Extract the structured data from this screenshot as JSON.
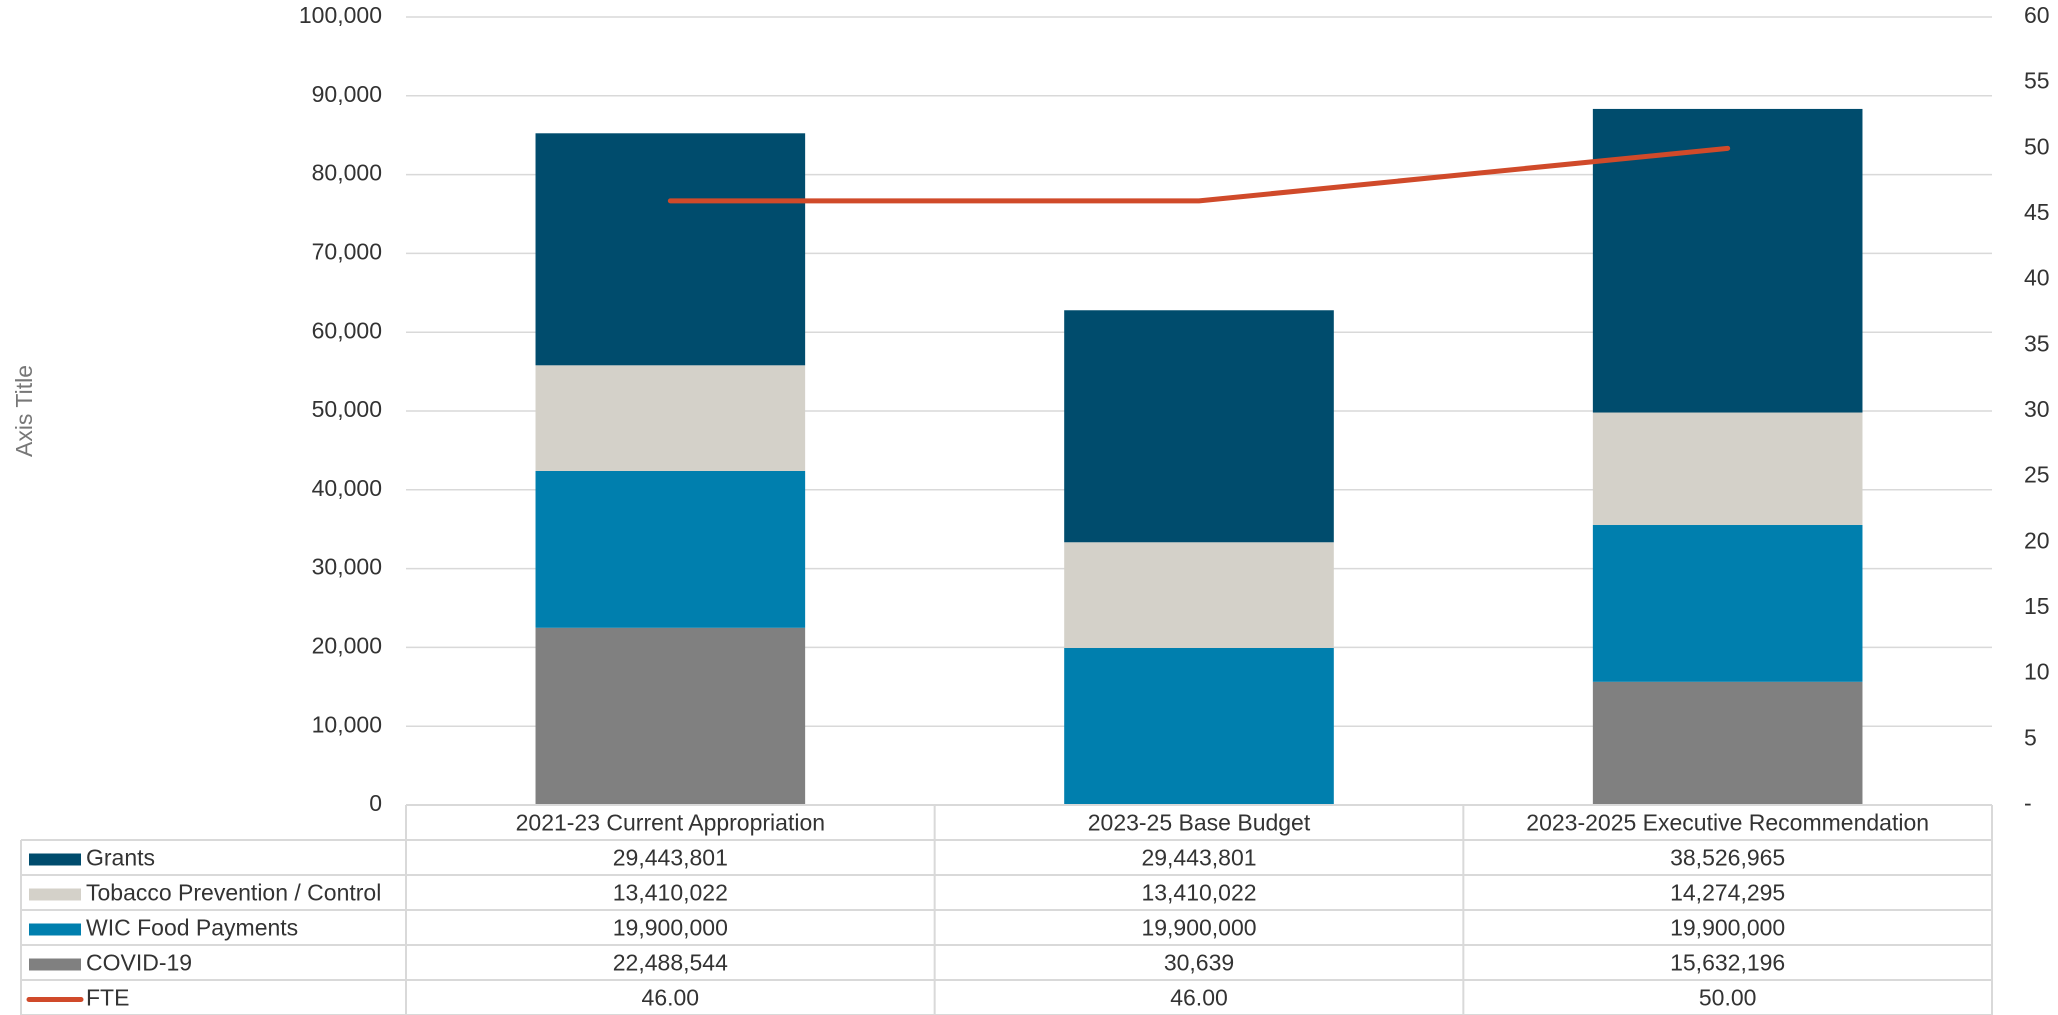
{
  "chart_data": {
    "type": "bar",
    "stacked": true,
    "y_label": "Axis Title",
    "categories": [
      "2021-23 Current Appropriation",
      "2023-25 Base Budget",
      "2023-2025 Executive Recommendation"
    ],
    "series": [
      {
        "name": "Grants",
        "color": "#004c6d",
        "values": [
          29443.801,
          29443.801,
          38526.965
        ],
        "value_labels": [
          "29,443,801",
          "29,443,801",
          "38,526,965"
        ]
      },
      {
        "name": "Tobacco Prevention / Control",
        "color": "#d4d1c9",
        "values": [
          13410.022,
          13410.022,
          14274.295
        ],
        "value_labels": [
          "13,410,022",
          "13,410,022",
          "14,274,295"
        ]
      },
      {
        "name": "WIC Food Payments",
        "color": "#007fae",
        "values": [
          19900,
          19900,
          19900
        ],
        "value_labels": [
          "19,900,000",
          "19,900,000",
          "19,900,000"
        ]
      },
      {
        "name": "COVID-19",
        "color": "#808080",
        "values": [
          22488.544,
          30.639,
          15632.196
        ],
        "value_labels": [
          "22,488,544",
          "30,639",
          "15,632,196"
        ]
      },
      {
        "name": "FTE",
        "color": "#d04a2a",
        "type": "line",
        "axis": "y2",
        "values": [
          46,
          46,
          50
        ],
        "value_labels": [
          "46.00",
          "46.00",
          "50.00"
        ]
      }
    ],
    "ylim": [
      0,
      100000
    ],
    "yticks": [
      0,
      {
        "value": 10000,
        "label": "10,000"
      },
      {
        "value": 20000,
        "label": "20,000"
      },
      {
        "value": 30000,
        "label": "30,000"
      },
      {
        "value": 40000,
        "label": "40,000"
      },
      {
        "value": 50000,
        "label": "50,000"
      },
      {
        "value": 60000,
        "label": "60,000"
      },
      {
        "value": 70000,
        "label": "70,000"
      },
      {
        "value": 80000,
        "label": "80,000"
      },
      {
        "value": 90000,
        "label": "90,000"
      },
      {
        "value": 100000,
        "label": "100,000"
      }
    ],
    "y2lim": [
      0,
      60
    ],
    "y2ticks": [
      {
        "value": 0,
        "label": "-"
      },
      5,
      10,
      15,
      20,
      25,
      30,
      35,
      40,
      45,
      50,
      55,
      60
    ],
    "grid": true
  }
}
